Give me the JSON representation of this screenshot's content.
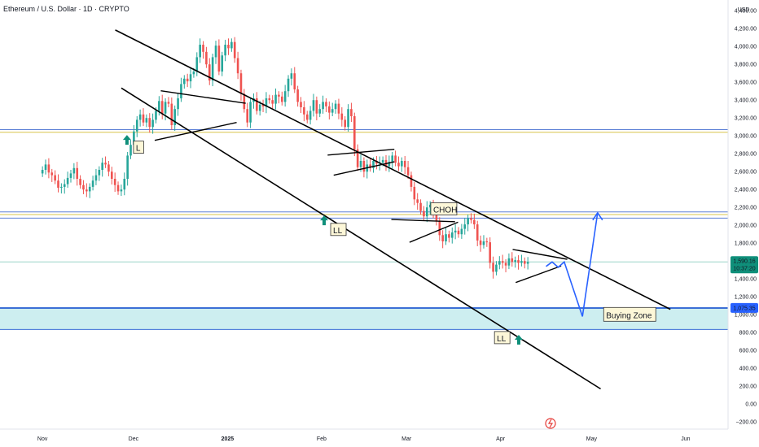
{
  "chart_data": {
    "type": "candlestick",
    "title": "Ethereum / U.S. Dollar · 1D · CRYPTO",
    "currency": "USD",
    "y_ticks": [
      "4,400.00",
      "4,200.00",
      "4,000.00",
      "3,800.00",
      "3,600.00",
      "3,400.00",
      "3,200.00",
      "3,000.00",
      "2,800.00",
      "2,600.00",
      "2,400.00",
      "2,200.00",
      "2,000.00",
      "1,800.00",
      "1,600.00",
      "1,400.00",
      "1,200.00",
      "1,000.00",
      "800.00",
      "600.00",
      "400.00",
      "200.00",
      "0.00",
      "−200.00"
    ],
    "y_tick_values": [
      4400,
      4200,
      4000,
      3800,
      3600,
      3400,
      3200,
      3000,
      2800,
      2600,
      2400,
      2200,
      2000,
      1800,
      1600,
      1400,
      1200,
      1000,
      800,
      600,
      400,
      200,
      0,
      -200
    ],
    "ylim": [
      -280,
      4520
    ],
    "x_ticks": [
      "Nov",
      "Dec",
      "2025",
      "Feb",
      "Mar",
      "Apr",
      "May",
      "Jun"
    ],
    "x_tick_days": [
      0,
      30,
      61,
      92,
      120,
      151,
      181,
      212
    ],
    "xlim_days": [
      -14,
      226
    ],
    "last_price": {
      "value": 1590.16,
      "label": "1,590.16",
      "countdown": "10:37:20"
    },
    "zone_price": {
      "value": 1075.35,
      "label": "1,075.35"
    },
    "horizontal_levels": [
      {
        "value": 3070,
        "color": "#5b7fd6"
      },
      {
        "value": 3040,
        "color": "#d8c44a"
      },
      {
        "value": 2150,
        "color": "#5b7fd6"
      },
      {
        "value": 2120,
        "color": "#d8c44a"
      },
      {
        "value": 2080,
        "color": "#5b7fd6"
      },
      {
        "value": 1590,
        "color": "#9ad3c8"
      }
    ],
    "buying_zone": {
      "from": 835,
      "to": 1075,
      "fill": "#cdeef0",
      "border": "#3b6fd6",
      "label": "Buying Zone"
    },
    "channel": {
      "upper": [
        [
          24,
          4185
        ],
        [
          207,
          1060
        ]
      ],
      "lower": [
        [
          26,
          3535
        ],
        [
          184,
          170
        ]
      ]
    },
    "trend_lines": [
      [
        [
          39,
          3505
        ],
        [
          67,
          3365
        ]
      ],
      [
        [
          37,
          2950
        ],
        [
          64,
          3150
        ]
      ],
      [
        [
          94,
          2785
        ],
        [
          116,
          2850
        ]
      ],
      [
        [
          96,
          2560
        ],
        [
          116,
          2710
        ]
      ],
      [
        [
          115,
          2065
        ],
        [
          136,
          2040
        ]
      ],
      [
        [
          121,
          1810
        ],
        [
          137,
          2035
        ]
      ],
      [
        [
          155,
          1730
        ],
        [
          173,
          1620
        ]
      ],
      [
        [
          156,
          1360
        ],
        [
          171,
          1545
        ]
      ]
    ],
    "projection": [
      [
        166,
        1540
      ],
      [
        168,
        1590
      ],
      [
        170,
        1530
      ],
      [
        172,
        1590
      ],
      [
        178,
        980
      ],
      [
        183,
        2140
      ]
    ],
    "annotations": [
      {
        "label": "L",
        "day": 30,
        "price": 2860,
        "arrow_price": 3010
      },
      {
        "label": "LL",
        "day": 95,
        "price": 1940,
        "arrow_price": 2110
      },
      {
        "label": "CHOH",
        "day": 128,
        "price": 2170,
        "arrow_price": null
      },
      {
        "label": "LL",
        "day": 149,
        "price": 730,
        "arrow_price": null
      },
      {
        "label": "",
        "day": 157,
        "price": null,
        "arrow_price": 775
      }
    ],
    "candles_close": [
      2620,
      2680,
      2590,
      2560,
      2500,
      2420,
      2430,
      2460,
      2530,
      2580,
      2640,
      2520,
      2450,
      2400,
      2380,
      2430,
      2500,
      2560,
      2620,
      2700,
      2680,
      2600,
      2520,
      2450,
      2380,
      2400,
      2520,
      2780,
      2900,
      3050,
      3180,
      3240,
      3150,
      3200,
      3100,
      3180,
      3280,
      3390,
      3250,
      3380,
      3360,
      3120,
      3300,
      3420,
      3580,
      3640,
      3610,
      3690,
      3720,
      3880,
      4020,
      3940,
      3800,
      3620,
      3880,
      4010,
      3720,
      3900,
      4020,
      3980,
      4050,
      3870,
      3700,
      3470,
      3300,
      3150,
      3380,
      3420,
      3280,
      3350,
      3330,
      3420,
      3400,
      3360,
      3460,
      3440,
      3380,
      3500,
      3640,
      3700,
      3520,
      3380,
      3320,
      3240,
      3180,
      3280,
      3400,
      3250,
      3300,
      3380,
      3330,
      3260,
      3300,
      3360,
      3250,
      3180,
      3100,
      3300,
      3220,
      2850,
      2650,
      2720,
      2600,
      2680,
      2640,
      2720,
      2690,
      2700,
      2730,
      2660,
      2710,
      2780,
      2700,
      2660,
      2720,
      2650,
      2560,
      2430,
      2290,
      2250,
      2160,
      2100,
      2200,
      2230,
      2120,
      2050,
      1890,
      1820,
      1900,
      1860,
      1920,
      1940,
      1900,
      1960,
      2010,
      2080,
      2060,
      2010,
      1830,
      1780,
      1820,
      1810,
      1580,
      1480,
      1560,
      1600,
      1580,
      1550,
      1630,
      1590,
      1610,
      1580,
      1600,
      1570,
      1590
    ]
  }
}
